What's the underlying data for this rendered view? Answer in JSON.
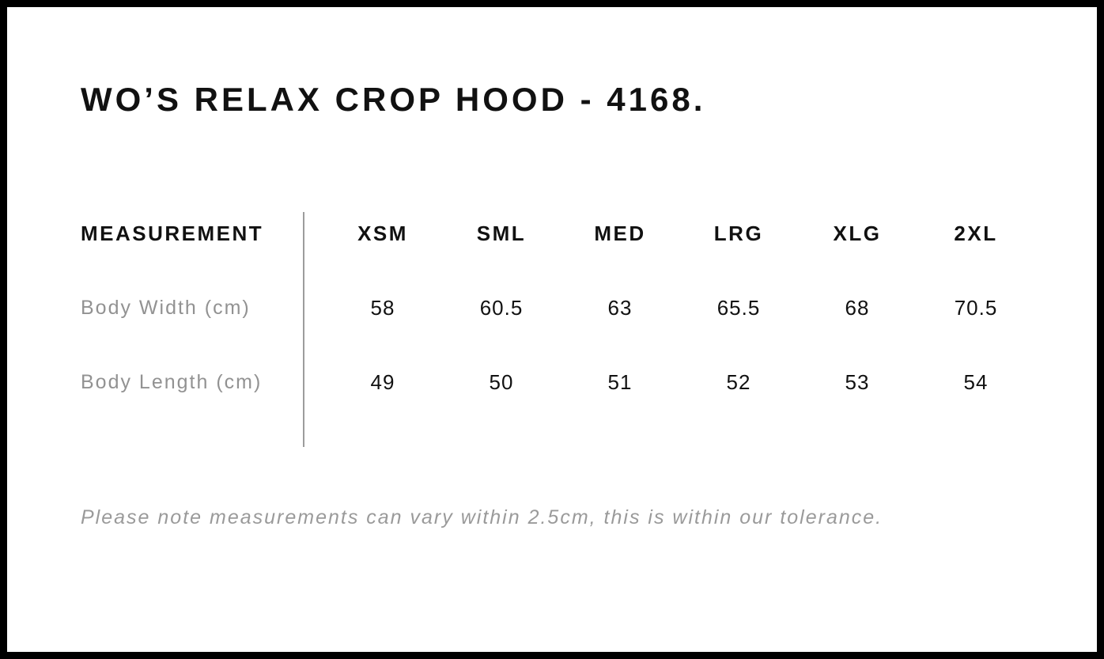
{
  "title": "WO’S RELAX CROP HOOD - 4168.",
  "table": {
    "measurement_header": "MEASUREMENT",
    "size_headers": [
      "XSM",
      "SML",
      "MED",
      "LRG",
      "XLG",
      "2XL"
    ],
    "rows": [
      {
        "label": "Body Width (cm)",
        "values": [
          "58",
          "60.5",
          "63",
          "65.5",
          "68",
          "70.5"
        ]
      },
      {
        "label": "Body Length (cm)",
        "values": [
          "49",
          "50",
          "51",
          "52",
          "53",
          "54"
        ]
      }
    ]
  },
  "note": "Please note measurements can vary within 2.5cm, this is within our tolerance.",
  "colors": {
    "text": "#111111",
    "muted_label": "#929292",
    "note_text": "#9a9a9a",
    "divider": "#9c9c9c",
    "frame_border": "#000000",
    "background": "#ffffff"
  },
  "chart_data": {
    "type": "table",
    "title": "WO’S RELAX CROP HOOD - 4168.",
    "categories": [
      "XSM",
      "SML",
      "MED",
      "LRG",
      "XLG",
      "2XL"
    ],
    "series": [
      {
        "name": "Body Width (cm)",
        "values": [
          58,
          60.5,
          63,
          65.5,
          68,
          70.5
        ]
      },
      {
        "name": "Body Length (cm)",
        "values": [
          49,
          50,
          51,
          52,
          53,
          54
        ]
      }
    ],
    "footnote": "Please note measurements can vary within 2.5cm, this is within our tolerance."
  }
}
